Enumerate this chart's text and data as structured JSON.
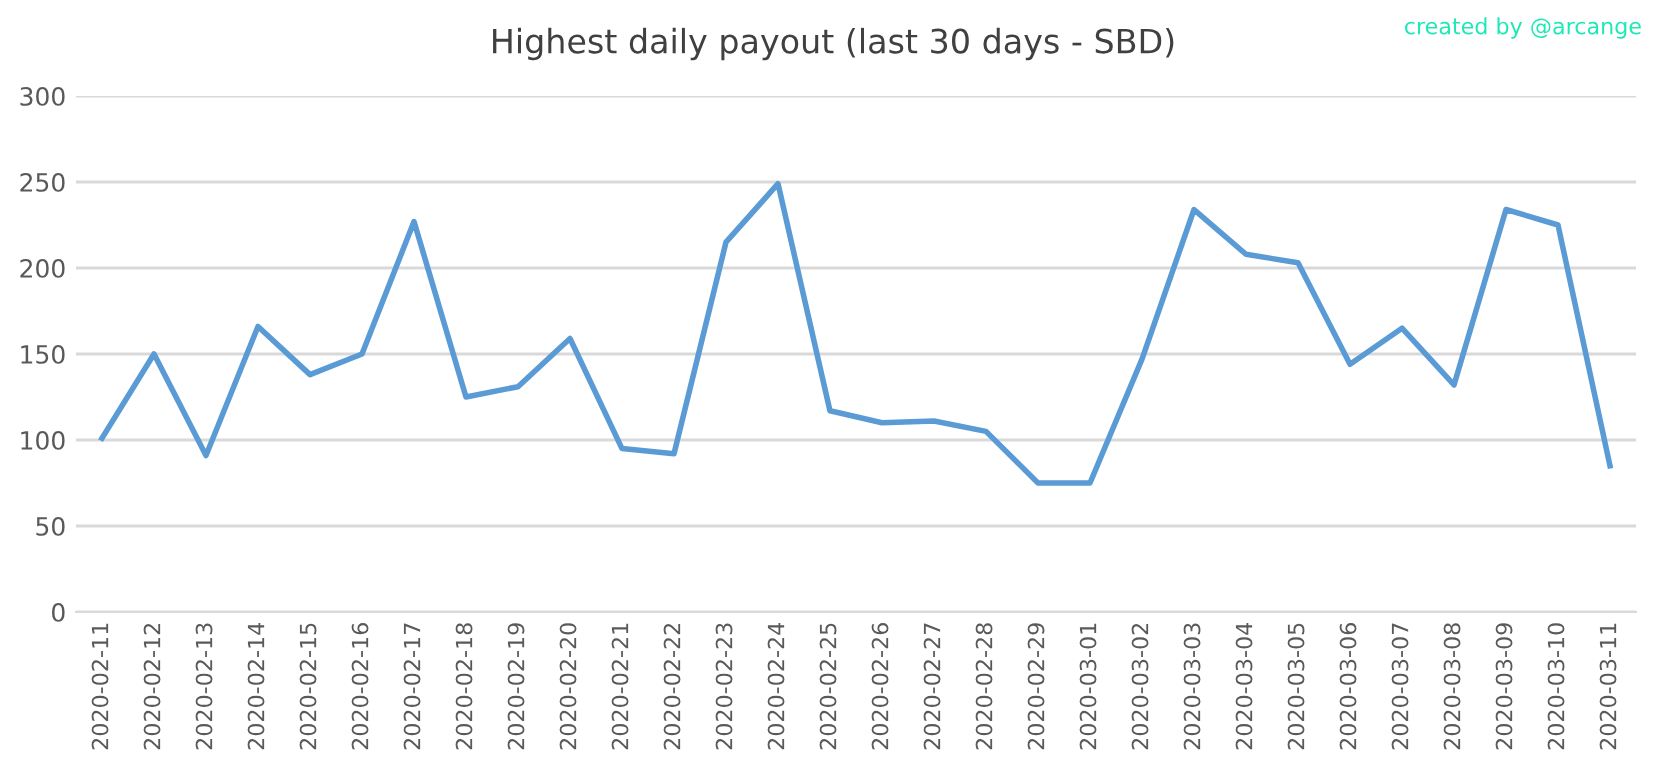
{
  "chart_data": {
    "type": "line",
    "title": "Highest daily payout (last 30 days - SBD)",
    "categories": [
      "2020-02-11",
      "2020-02-12",
      "2020-02-13",
      "2020-02-14",
      "2020-02-15",
      "2020-02-16",
      "2020-02-17",
      "2020-02-18",
      "2020-02-19",
      "2020-02-20",
      "2020-02-21",
      "2020-02-22",
      "2020-02-23",
      "2020-02-24",
      "2020-02-25",
      "2020-02-26",
      "2020-02-27",
      "2020-02-28",
      "2020-02-29",
      "2020-03-01",
      "2020-03-02",
      "2020-03-03",
      "2020-03-04",
      "2020-03-05",
      "2020-03-06",
      "2020-03-07",
      "2020-03-08",
      "2020-03-09",
      "2020-03-10",
      "2020-03-11"
    ],
    "series": [
      {
        "color": "#5b9bd5",
        "values": [
          101,
          150,
          91,
          166,
          138,
          150,
          227,
          125,
          131,
          159,
          95,
          92,
          215,
          249,
          117,
          110,
          111,
          105,
          75,
          75,
          147,
          234,
          208,
          203,
          144,
          165,
          132,
          234,
          225,
          85
        ]
      }
    ],
    "ylim": [
      0,
      300
    ],
    "yticks": [
      0,
      50,
      100,
      150,
      200,
      250,
      300
    ],
    "grid": "y",
    "marker": "none",
    "line_style": "solid",
    "annotations": [
      "created by @arcange"
    ]
  }
}
